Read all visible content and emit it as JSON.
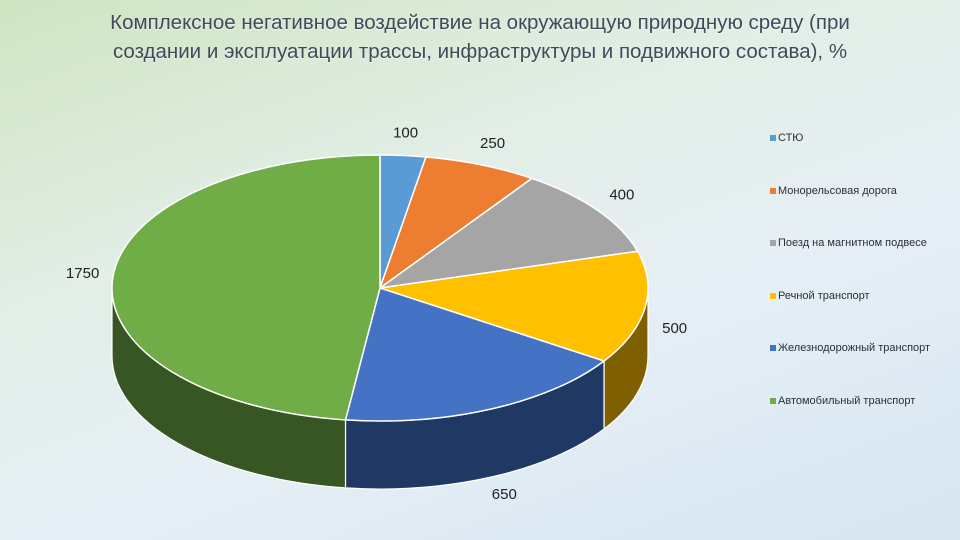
{
  "title": "Комплексное негативное воздействие на окружающую природную среду (при создании и эксплуатации трассы, инфраструктуры и подвижного состава), %",
  "chart_data": {
    "type": "pie",
    "title": "Комплексное негативное воздействие на окружающую природную среду (при создании и эксплуатации трассы, инфраструктуры и подвижного состава), %",
    "style": "3d",
    "legend_position": "right",
    "slices": [
      {
        "name": "СТЮ",
        "value": 100,
        "color": "#5B9BD5",
        "side_color": "#2E5F8A"
      },
      {
        "name": "Монорельсовая дорога",
        "value": 250,
        "color": "#ED7D31",
        "side_color": "#8A4413"
      },
      {
        "name": "Поезд на магнитном подвесе",
        "value": 400,
        "color": "#A5A5A5",
        "side_color": "#5E5E5E"
      },
      {
        "name": "Речной транспорт",
        "value": 500,
        "color": "#FFC000",
        "side_color": "#7F6000"
      },
      {
        "name": "Железнодорожный транспорт",
        "value": 650,
        "color": "#4472C4",
        "side_color": "#203864"
      },
      {
        "name": "Автомобильный транспорт",
        "value": 1750,
        "color": "#70AD47",
        "side_color": "#375623"
      }
    ]
  }
}
